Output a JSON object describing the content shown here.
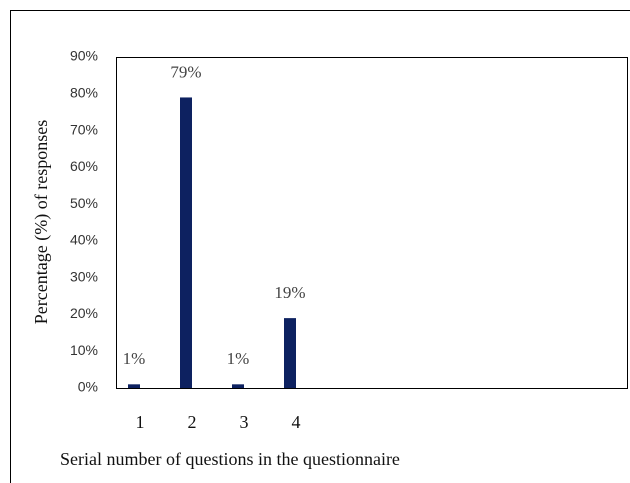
{
  "chart_data": {
    "type": "bar",
    "categories": [
      "1",
      "2",
      "3",
      "4"
    ],
    "values": [
      1,
      79,
      1,
      19
    ],
    "value_labels": [
      "1%",
      "79%",
      "1%",
      "19%"
    ],
    "color": "#0d2160",
    "ylim": [
      0,
      90
    ],
    "yticks": [
      {
        "value": 0,
        "label": "0%"
      },
      {
        "value": 10,
        "label": "10%"
      },
      {
        "value": 20,
        "label": "20%"
      },
      {
        "value": 30,
        "label": "30%"
      },
      {
        "value": 40,
        "label": "40%"
      },
      {
        "value": 50,
        "label": "50%"
      },
      {
        "value": 60,
        "label": "60%"
      },
      {
        "value": 70,
        "label": "70%"
      },
      {
        "value": 80,
        "label": "80%"
      },
      {
        "value": 90,
        "label": "90%"
      }
    ],
    "ylabel": "Percentage (%) of  responses",
    "xlabel": "Serial number of questions in the questionnaire"
  }
}
